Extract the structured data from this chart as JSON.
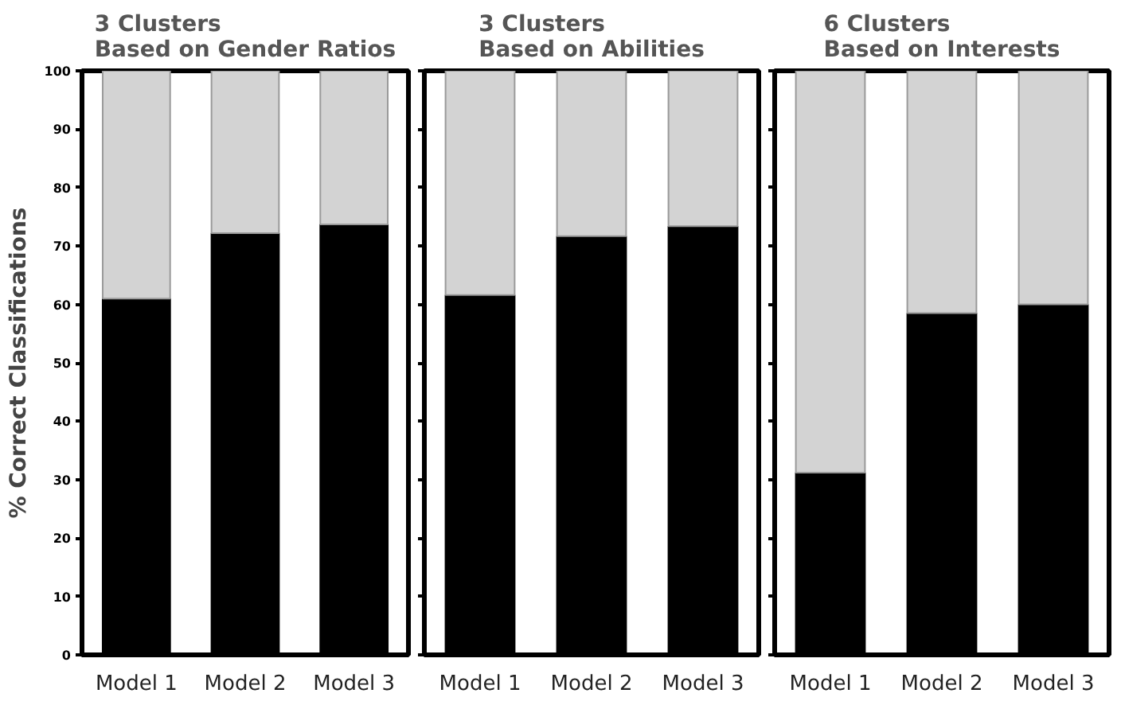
{
  "chart_data": [
    {
      "type": "bar",
      "title": "3 Clusters\nBased on Gender Ratios",
      "ylabel": "% Correct Classifications",
      "categories": [
        "Model 1",
        "Model 2",
        "Model 3"
      ],
      "stacked": true,
      "series": [
        {
          "color": "#000000",
          "values": [
            61.0,
            72.2,
            73.7
          ]
        },
        {
          "color": "#d3d3d3",
          "values": [
            39.0,
            27.8,
            26.3
          ]
        }
      ],
      "ylim": [
        0,
        100
      ],
      "yticks": [
        0,
        10,
        20,
        30,
        40,
        50,
        60,
        70,
        80,
        90,
        100
      ],
      "grid": false
    },
    {
      "type": "bar",
      "title": "3 Clusters\nBased on Abilities",
      "categories": [
        "Model 1",
        "Model 2",
        "Model 3"
      ],
      "stacked": true,
      "series": [
        {
          "color": "#000000",
          "values": [
            61.6,
            71.7,
            73.4
          ]
        },
        {
          "color": "#d3d3d3",
          "values": [
            38.4,
            28.3,
            26.6
          ]
        }
      ],
      "ylim": [
        0,
        100
      ],
      "yticks": [
        0,
        10,
        20,
        30,
        40,
        50,
        60,
        70,
        80,
        90,
        100
      ],
      "tick_labels": "x",
      "grid": false
    },
    {
      "type": "bar",
      "title": "6 Clusters\nBased on Interests",
      "categories": [
        "Model 1",
        "Model 2",
        "Model 3"
      ],
      "stacked": true,
      "series": [
        {
          "color": "#000000",
          "values": [
            31.2,
            58.5,
            60.0
          ]
        },
        {
          "color": "#d3d3d3",
          "values": [
            68.8,
            41.5,
            40.0
          ]
        }
      ],
      "ylim": [
        0,
        100
      ],
      "yticks": [
        0,
        10,
        20,
        30,
        40,
        50,
        60,
        70,
        80,
        90,
        100
      ],
      "tick_labels": "x",
      "grid": false
    }
  ]
}
